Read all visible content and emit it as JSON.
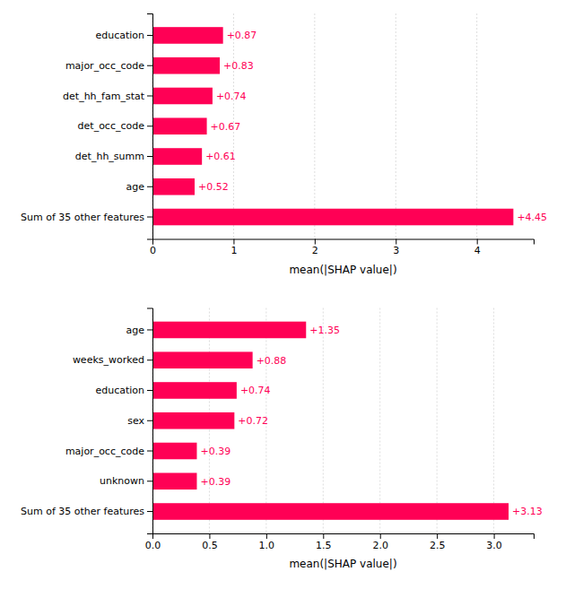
{
  "chart_data": [
    {
      "type": "bar",
      "orientation": "horizontal",
      "categories": [
        "education",
        "major_occ_code",
        "det_hh_fam_stat",
        "det_occ_code",
        "det_hh_summ",
        "age",
        "Sum of 35 other features"
      ],
      "values": [
        0.87,
        0.83,
        0.74,
        0.67,
        0.61,
        0.52,
        4.45
      ],
      "value_labels": [
        "+0.87",
        "+0.83",
        "+0.74",
        "+0.67",
        "+0.61",
        "+0.52",
        "+4.45"
      ],
      "data_labels": true,
      "color": "#FF0055",
      "xlabel": "mean(|SHAP value|)",
      "xlim": [
        0,
        4.7
      ],
      "xticks": [
        0,
        1,
        2,
        3,
        4
      ],
      "grid": true
    },
    {
      "type": "bar",
      "orientation": "horizontal",
      "categories": [
        "age",
        "weeks_worked",
        "education",
        "sex",
        "major_occ_code",
        "unknown",
        "Sum of 35 other features"
      ],
      "values": [
        1.35,
        0.88,
        0.74,
        0.72,
        0.39,
        0.39,
        3.13
      ],
      "value_labels": [
        "+1.35",
        "+0.88",
        "+0.74",
        "+0.72",
        "+0.39",
        "+0.39",
        "+3.13"
      ],
      "data_labels": true,
      "color": "#FF0055",
      "xlabel": "mean(|SHAP value|)",
      "xlim": [
        0,
        3.35
      ],
      "xticks": [
        {
          "value": 0,
          "label": "0.0"
        },
        0.5,
        {
          "value": 1,
          "label": "1.0"
        },
        1.5,
        {
          "value": 2,
          "label": "2.0"
        },
        2.5,
        {
          "value": 3,
          "label": "3.0"
        }
      ],
      "grid": true
    }
  ]
}
